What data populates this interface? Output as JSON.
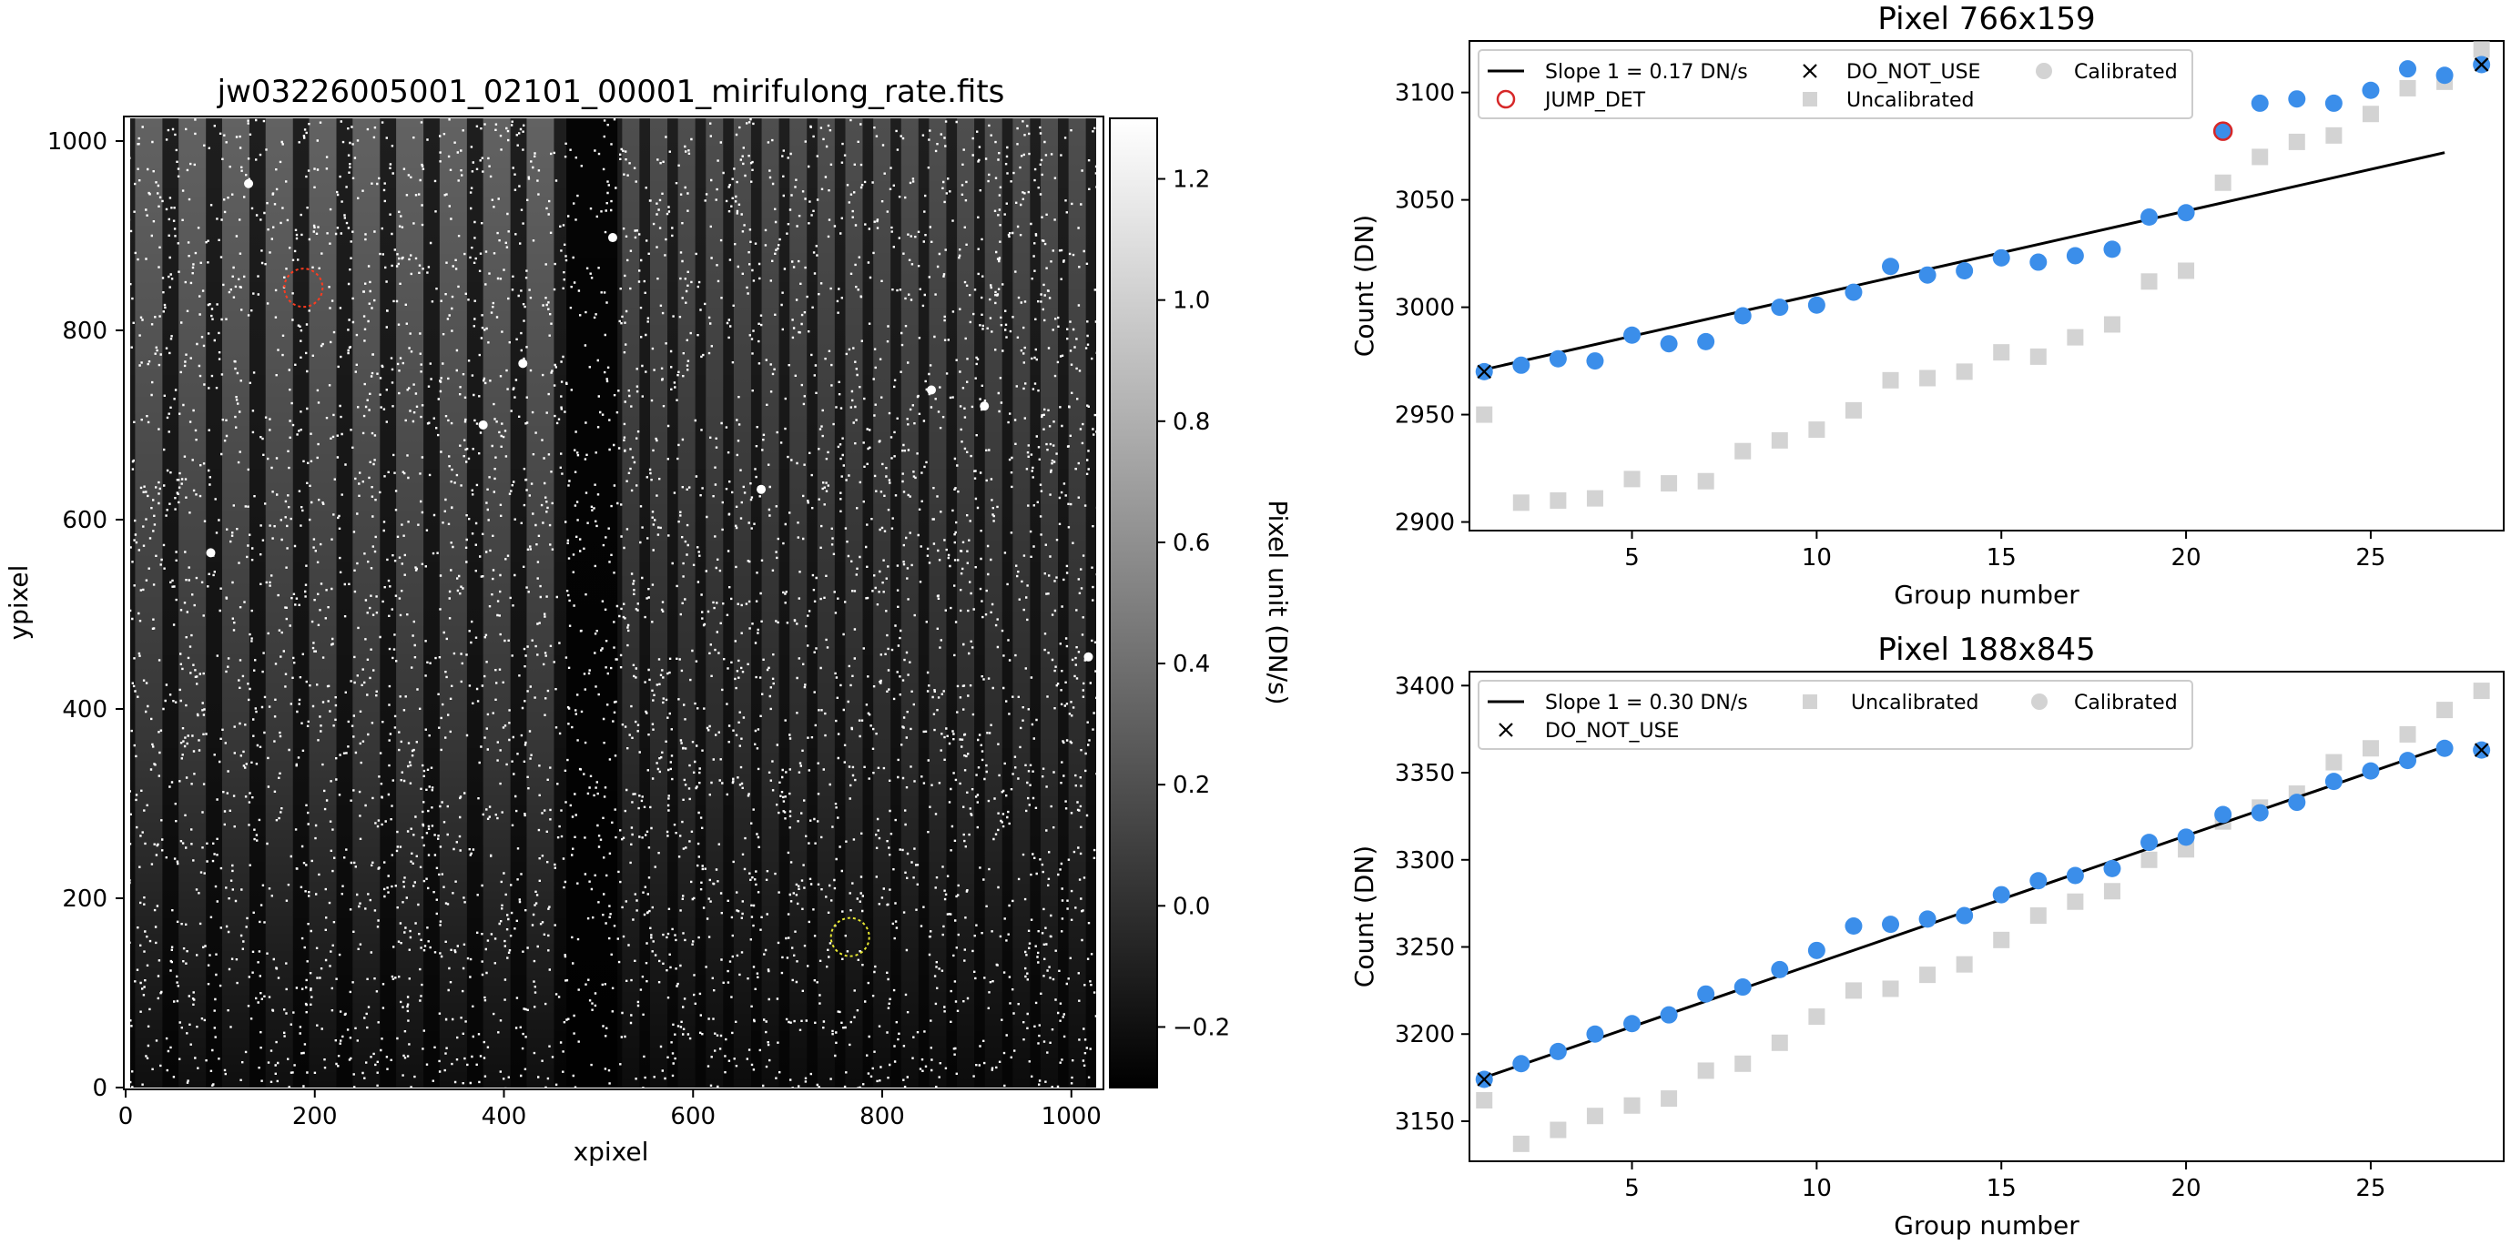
{
  "chart_data": [
    {
      "type": "heatmap",
      "title": "jw03226005001_02101_00001_mirifulong_rate.fits",
      "xlabel": "xpixel",
      "ylabel": "ypixel",
      "xlim": [
        0,
        1032
      ],
      "ylim": [
        0,
        1024
      ],
      "xticks": [
        0,
        200,
        400,
        600,
        800,
        1000
      ],
      "yticks": [
        0,
        200,
        400,
        600,
        800,
        1000
      ],
      "colormap": "gray",
      "colorbar": {
        "label": "Pixel unit (DN/s)",
        "range": [
          -0.3,
          1.3
        ],
        "ticks": [
          -0.2,
          0.0,
          0.2,
          0.4,
          0.6,
          0.8,
          1.0,
          1.2
        ],
        "tick_labels": [
          "−0.2",
          "0.0",
          "0.2",
          "0.4",
          "0.6",
          "0.8",
          "1.0",
          "1.2"
        ]
      },
      "markers": [
        {
          "x": 188,
          "y": 845,
          "color": "#ff3b1f"
        },
        {
          "x": 766,
          "y": 159,
          "color": "#e8e832"
        }
      ]
    },
    {
      "type": "scatter",
      "title": "Pixel 766x159",
      "xlabel": "Group number",
      "ylabel": "Count (DN)",
      "xlim": [
        0.6,
        28.6
      ],
      "ylim": [
        2896,
        3124
      ],
      "xticks": [
        5,
        10,
        15,
        20,
        25
      ],
      "yticks": [
        2900,
        2950,
        3000,
        3050,
        3100
      ],
      "legend_position": "upper-left",
      "legend": [
        "Slope 1 = 0.17 DN/s",
        "DO_NOT_USE",
        "Calibrated",
        "JUMP_DET",
        "Uncalibrated"
      ],
      "fit_line": {
        "x": [
          1,
          27
        ],
        "y": [
          2971,
          3072
        ]
      },
      "series": [
        {
          "name": "Uncalibrated",
          "marker": "square",
          "color": "#d3d3d3",
          "x": [
            1,
            2,
            3,
            4,
            5,
            6,
            7,
            8,
            9,
            10,
            11,
            12,
            13,
            14,
            15,
            16,
            17,
            18,
            19,
            20,
            21,
            22,
            23,
            24,
            25,
            26,
            27,
            28
          ],
          "y": [
            2950,
            2909,
            2910,
            2911,
            2920,
            2918,
            2919,
            2933,
            2938,
            2943,
            2952,
            2966,
            2967,
            2970,
            2979,
            2977,
            2986,
            2992,
            3012,
            3017,
            3058,
            3070,
            3077,
            3080,
            3090,
            3102,
            3105,
            3120
          ]
        },
        {
          "name": "Calibrated",
          "marker": "circle",
          "color": "#3b8eea",
          "x": [
            1,
            2,
            3,
            4,
            5,
            6,
            7,
            8,
            9,
            10,
            11,
            12,
            13,
            14,
            15,
            16,
            17,
            18,
            19,
            20,
            21,
            22,
            23,
            24,
            25,
            26,
            27,
            28
          ],
          "y": [
            2970,
            2973,
            2976,
            2975,
            2987,
            2983,
            2984,
            2996,
            3000,
            3001,
            3007,
            3019,
            3015,
            3017,
            3023,
            3021,
            3024,
            3027,
            3042,
            3044,
            3082,
            3095,
            3097,
            3095,
            3101,
            3111,
            3108,
            3113
          ]
        },
        {
          "name": "JUMP_DET",
          "marker": "open-circle",
          "color": "#d62728",
          "x": [
            21
          ],
          "y": [
            3082
          ]
        },
        {
          "name": "DO_NOT_USE",
          "marker": "x",
          "color": "#000000",
          "x": [
            1,
            28
          ],
          "y": [
            2970,
            3113
          ]
        }
      ]
    },
    {
      "type": "scatter",
      "title": "Pixel 188x845",
      "xlabel": "Group number",
      "ylabel": "Count (DN)",
      "xlim": [
        0.6,
        28.6
      ],
      "ylim": [
        3127,
        3408
      ],
      "xticks": [
        5,
        10,
        15,
        20,
        25
      ],
      "yticks": [
        3150,
        3200,
        3250,
        3300,
        3350,
        3400
      ],
      "legend_position": "upper-left",
      "legend": [
        "Slope 1 = 0.30 DN/s",
        "Uncalibrated",
        "Calibrated",
        "DO_NOT_USE"
      ],
      "fit_line": {
        "x": [
          1,
          27
        ],
        "y": [
          3175,
          3365
        ]
      },
      "series": [
        {
          "name": "Uncalibrated",
          "marker": "square",
          "color": "#d3d3d3",
          "x": [
            1,
            2,
            3,
            4,
            5,
            6,
            7,
            8,
            9,
            10,
            11,
            12,
            13,
            14,
            15,
            16,
            17,
            18,
            19,
            20,
            21,
            22,
            23,
            24,
            25,
            26,
            27,
            28
          ],
          "y": [
            3162,
            3137,
            3145,
            3153,
            3159,
            3163,
            3179,
            3183,
            3195,
            3210,
            3225,
            3226,
            3234,
            3240,
            3254,
            3268,
            3276,
            3282,
            3300,
            3306,
            3322,
            3330,
            3338,
            3356,
            3364,
            3372,
            3386,
            3397
          ]
        },
        {
          "name": "Calibrated",
          "marker": "circle",
          "color": "#3b8eea",
          "x": [
            1,
            2,
            3,
            4,
            5,
            6,
            7,
            8,
            9,
            10,
            11,
            12,
            13,
            14,
            15,
            16,
            17,
            18,
            19,
            20,
            21,
            22,
            23,
            24,
            25,
            26,
            27,
            28
          ],
          "y": [
            3174,
            3183,
            3190,
            3200,
            3206,
            3211,
            3223,
            3227,
            3237,
            3248,
            3262,
            3263,
            3266,
            3268,
            3280,
            3288,
            3291,
            3295,
            3310,
            3313,
            3326,
            3327,
            3333,
            3345,
            3351,
            3357,
            3364,
            3363
          ]
        },
        {
          "name": "DO_NOT_USE",
          "marker": "x",
          "color": "#000000",
          "x": [
            1,
            28
          ],
          "y": [
            3174,
            3363
          ]
        }
      ]
    }
  ]
}
